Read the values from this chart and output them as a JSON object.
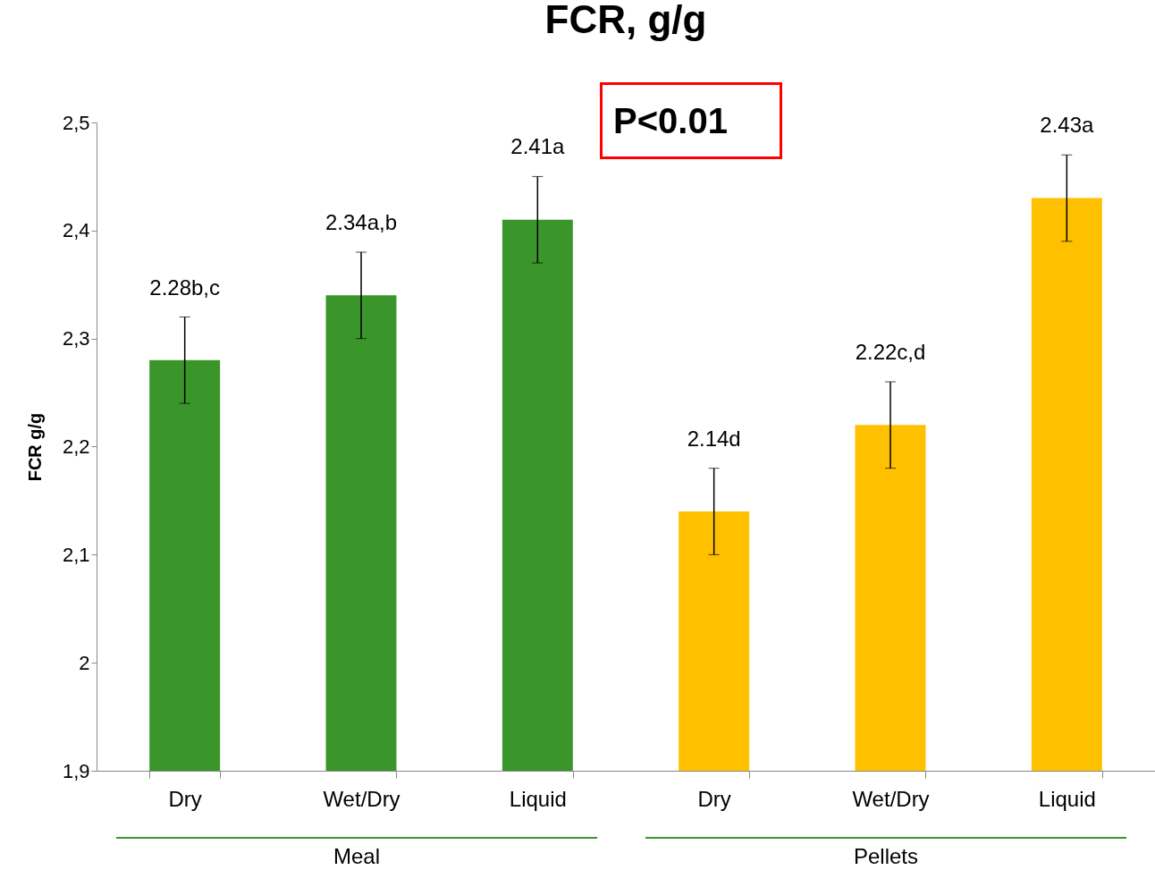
{
  "chart_data": {
    "type": "bar",
    "title": "FCR, g/g",
    "ylabel": "FCR g/g",
    "categories": [
      "Dry",
      "Wet/Dry",
      "Liquid",
      "Dry",
      "Wet/Dry",
      "Liquid"
    ],
    "values": [
      2.28,
      2.34,
      2.41,
      2.14,
      2.22,
      2.43
    ],
    "colors": [
      "#3a962b",
      "#3a962b",
      "#3a962b",
      "#ffc000",
      "#ffc000",
      "#ffc000"
    ],
    "errors": [
      0.04,
      0.04,
      0.04,
      0.04,
      0.04,
      0.04
    ],
    "value_labels": [
      "2.28b,c",
      "2.34a,b",
      "2.41a",
      "2.14d",
      "2.22c,d",
      "2.43a"
    ],
    "ylim": [
      1.9,
      2.5
    ],
    "yticks": [
      {
        "value": 1.9,
        "label": "1,9"
      },
      2,
      {
        "value": 2.1,
        "label": "2,1"
      },
      {
        "value": 2.2,
        "label": "2,2"
      },
      {
        "value": 2.3,
        "label": "2,3"
      },
      {
        "value": 2.4,
        "label": "2,4"
      },
      {
        "value": 2.5,
        "label": "2,5"
      }
    ],
    "grid": false,
    "annotations": [
      "P<0.01",
      "Meal",
      "Pellets"
    ]
  }
}
